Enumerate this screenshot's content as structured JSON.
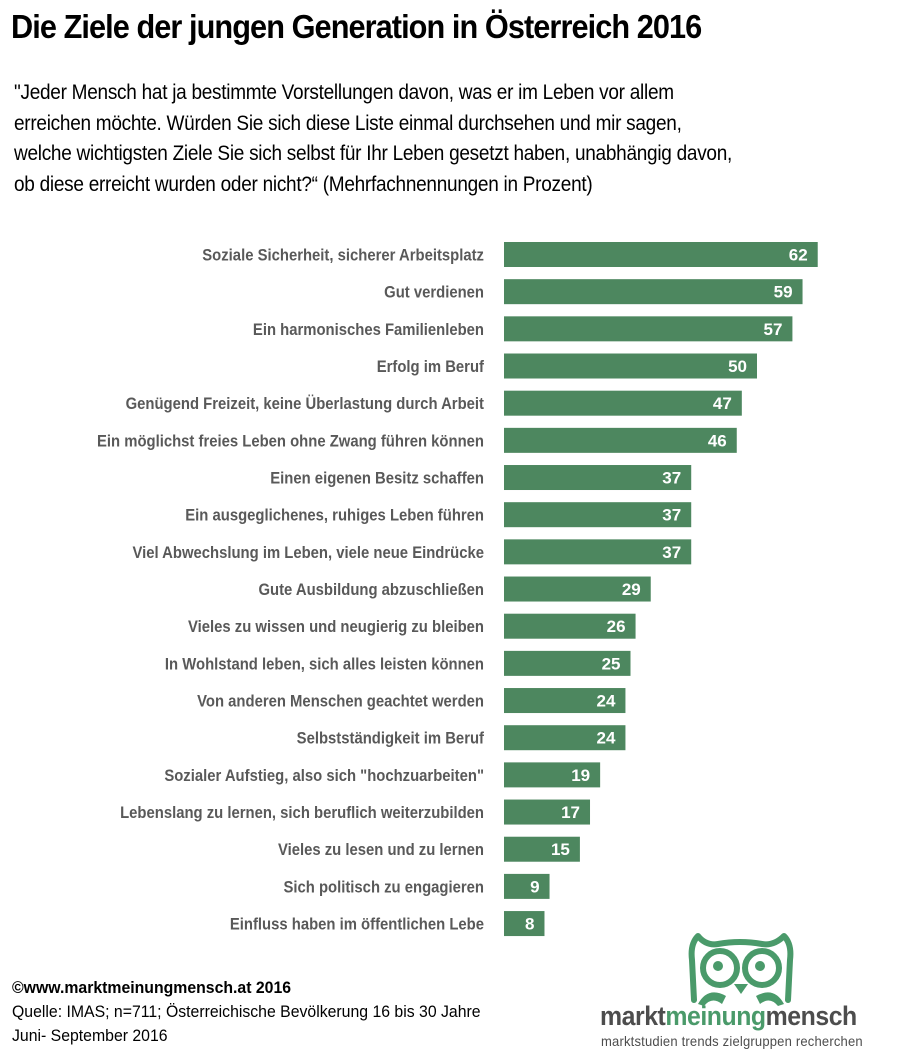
{
  "header": {
    "title": "Die Ziele der jungen Generation in Österreich 2016",
    "question_lines": [
      "\"Jeder Mensch hat ja bestimmte Vorstellungen davon, was er im Leben vor allem",
      "erreichen möchte. Würden Sie sich diese Liste einmal durchsehen und mir sagen,",
      "welche wichtigsten Ziele Sie sich selbst für Ihr Leben gesetzt haben, unabhängig davon,",
      "ob diese erreicht wurden oder nicht?“ (Mehrfachnennungen in Prozent)"
    ]
  },
  "chart_data": {
    "type": "bar",
    "orientation": "horizontal",
    "title": "Die Ziele der jungen Generation in Österreich 2016",
    "xlabel": "",
    "ylabel": "",
    "unit": "Prozent",
    "xlim": [
      0,
      62
    ],
    "grid": false,
    "legend": "none",
    "bar_color": "#4d875f",
    "categories": [
      "Soziale Sicherheit, sicherer Arbeitsplatz",
      "Gut verdienen",
      "Ein harmonisches Familienleben",
      "Erfolg im Beruf",
      "Genügend Freizeit, keine Überlastung durch Arbeit",
      "Ein möglichst freies Leben ohne Zwang führen können",
      "Einen eigenen Besitz schaffen",
      "Ein ausgeglichenes, ruhiges Leben führen",
      "Viel Abwechslung im Leben, viele neue Eindrücke",
      "Gute Ausbildung abzuschließen",
      "Vieles zu wissen und neugierig zu bleiben",
      "In Wohlstand leben, sich alles leisten können",
      "Von anderen Menschen geachtet werden",
      "Selbstständigkeit im Beruf",
      "Sozialer Aufstieg, also sich \"hochzuarbeiten\"",
      "Lebenslang zu lernen, sich beruflich weiterzubilden",
      "Vieles zu lesen und zu lernen",
      "Sich politisch zu engagieren",
      "Einfluss haben im öffentlichen Lebe"
    ],
    "values": [
      62,
      59,
      57,
      50,
      47,
      46,
      37,
      37,
      37,
      29,
      26,
      25,
      24,
      24,
      19,
      17,
      15,
      9,
      8
    ]
  },
  "footer": {
    "copyright": "©www.marktmeinungmensch.at 2016",
    "source": "Quelle: IMAS; n=711; Österreichische Bevölkerung 16 bis 30 Jahre",
    "period": "Juni- September 2016"
  },
  "logo": {
    "icon": "owl-icon",
    "word1": "markt",
    "word2": "meinung",
    "word3": "mensch",
    "tagline": "marktstudien trends zielgruppen recherchen",
    "colors": {
      "green": "#4a9a6a",
      "gray": "#4d4d4d"
    }
  }
}
